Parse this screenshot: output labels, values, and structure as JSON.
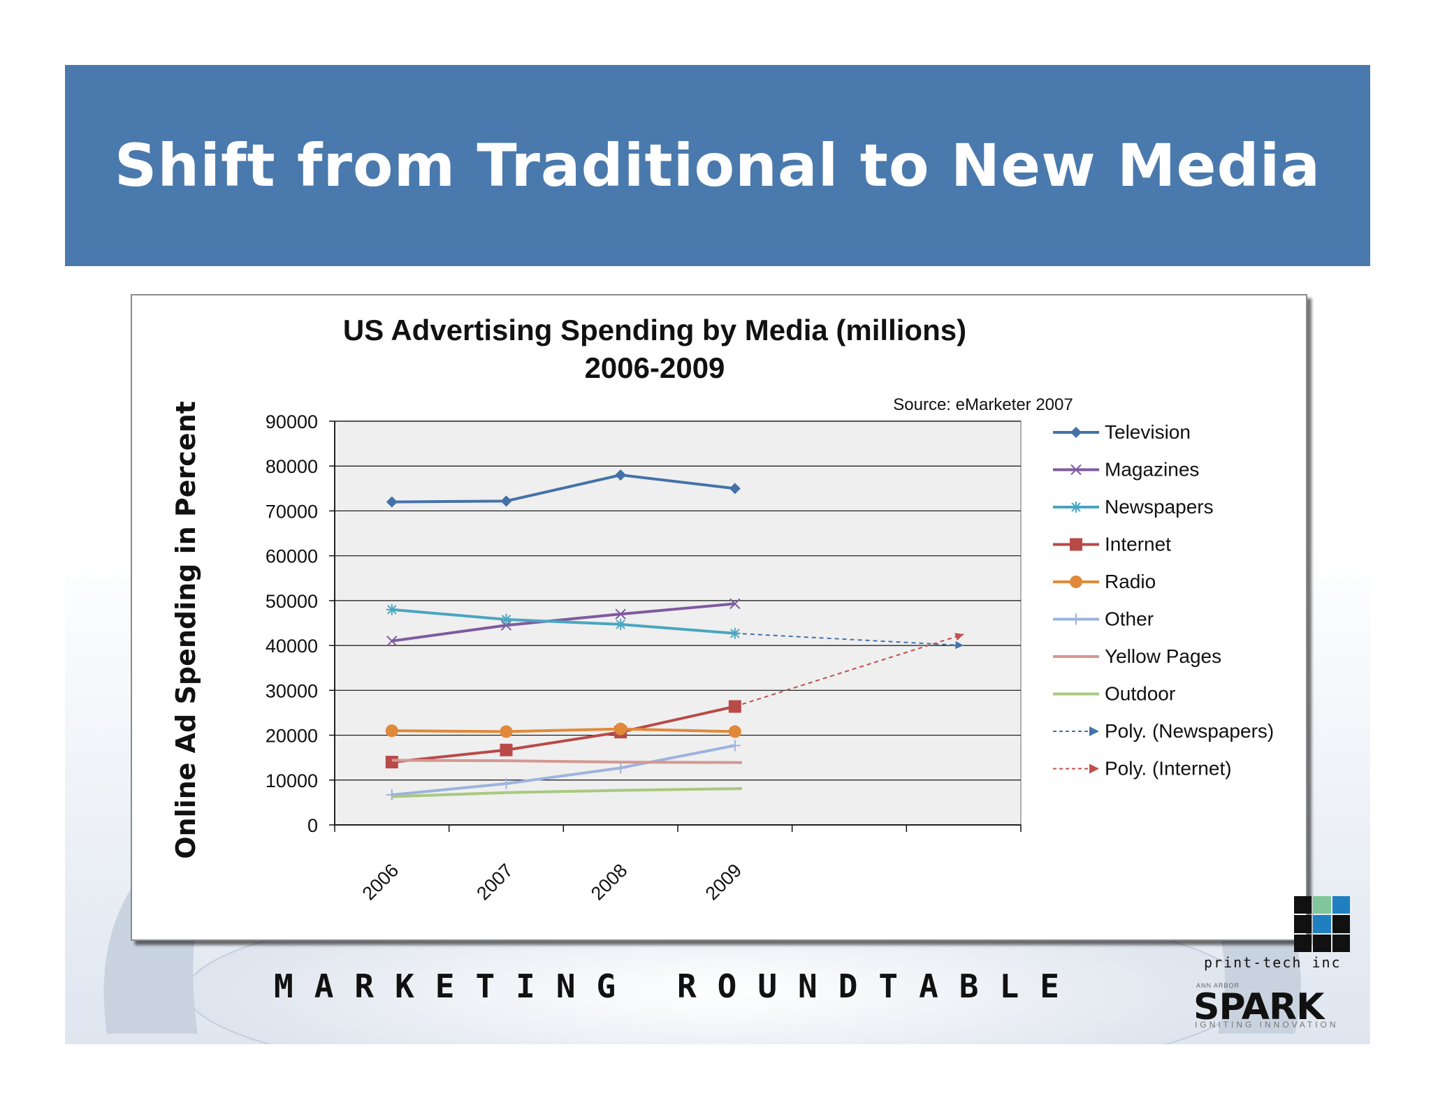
{
  "slide": {
    "title": "Shift from Traditional to New Media",
    "footer_text": "MARKETING ROUNDTABLE",
    "logo": {
      "printtech": "print-tech inc",
      "spark_small": "ANN ARBOR",
      "spark": "SPARK",
      "spark_tagline": "IGNITING INNOVATION",
      "grid_colors": [
        "#111111",
        "#7fc79a",
        "#1f7fc0",
        "#111111",
        "#1f7fc0",
        "#111111",
        "#111111",
        "#111111",
        "#111111"
      ]
    },
    "colors": {
      "banner": "#4a7aad",
      "title": "#ffffff"
    }
  },
  "chart_data": {
    "type": "line",
    "title": "US Advertising Spending by Media (millions)",
    "subtitle": "2006-2009",
    "source": "Source: eMarketer 2007",
    "ylabel": "Online Ad Spending in Percent",
    "xlabel": "",
    "categories": [
      "2006",
      "2007",
      "2008",
      "2009"
    ],
    "ylim": [
      0,
      90000
    ],
    "yticks": [
      "0",
      "10000",
      "20000",
      "30000",
      "40000",
      "50000",
      "60000",
      "70000",
      "80000",
      "90000"
    ],
    "grid": true,
    "legend_position": "right",
    "series": [
      {
        "name": "Television",
        "values": [
          72000,
          72200,
          78000,
          75000
        ],
        "color": "#4472a8",
        "marker": "diamond"
      },
      {
        "name": "Magazines",
        "values": [
          41000,
          44500,
          47000,
          49300
        ],
        "color": "#7f5aa0",
        "marker": "x"
      },
      {
        "name": "Newspapers",
        "values": [
          48000,
          45800,
          44700,
          42700
        ],
        "color": "#4aa6c0",
        "marker": "star"
      },
      {
        "name": "Internet",
        "values": [
          14000,
          16700,
          20700,
          26400
        ],
        "color": "#b84a48",
        "marker": "square"
      },
      {
        "name": "Radio",
        "values": [
          21000,
          20800,
          21400,
          20800
        ],
        "color": "#e0893a",
        "marker": "circle"
      },
      {
        "name": "Other",
        "values": [
          6700,
          9200,
          12700,
          17700
        ],
        "color": "#9db3dc",
        "marker": "plus"
      },
      {
        "name": "Yellow Pages",
        "values": [
          14400,
          14300,
          14000,
          13900
        ],
        "color": "#d49892",
        "marker": "none"
      },
      {
        "name": "Outdoor",
        "values": [
          6300,
          7200,
          7700,
          8100
        ],
        "color": "#a8c97e",
        "marker": "none"
      }
    ],
    "trendlines": [
      {
        "name": "Poly. (Newspapers)",
        "from": [
          "2009",
          42700
        ],
        "to": [
          "2011",
          40000
        ],
        "color": "#4472a8"
      },
      {
        "name": "Poly. (Internet)",
        "from": [
          "2009",
          26400
        ],
        "to": [
          "2011",
          42500
        ],
        "color": "#c0504d"
      }
    ]
  }
}
